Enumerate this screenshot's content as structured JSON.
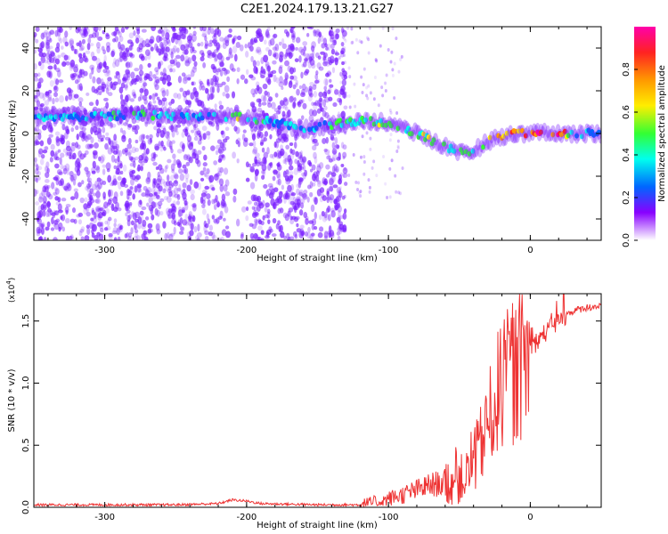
{
  "title": "C2E1.2024.179.13.21.G27",
  "colors": {
    "snr_line": "#ee3333",
    "spectrum_dots": "#7a1fff",
    "colorbar_stops": [
      "#ff00aa",
      "#ff2222",
      "#ff9900",
      "#ffee00",
      "#33ff33",
      "#00ffee",
      "#0066ff",
      "#8800ff",
      "#ffffff"
    ]
  },
  "chart_data": [
    {
      "type": "heatmap",
      "xlabel": "Height of straight line (km)",
      "ylabel": "Frequency (Hz)",
      "xlim": [
        -350,
        50
      ],
      "ylim": [
        -50,
        50
      ],
      "x_ticks": [
        -300,
        -200,
        -100,
        0
      ],
      "y_ticks": [
        -40,
        -20,
        0,
        20,
        40
      ],
      "x_tick_labels": [
        "-300",
        "-200",
        "-100",
        "0"
      ],
      "y_tick_labels": [
        "-40",
        "-20",
        "0",
        "20",
        "40"
      ],
      "colorbar": {
        "label": "Normalized spectral amplitude",
        "range": [
          0,
          1
        ],
        "ticks": [
          0.0,
          0.2,
          0.4,
          0.6,
          0.8
        ],
        "tick_labels": [
          "0.0",
          "0.2",
          "0.4",
          "0.6",
          "0.8"
        ]
      },
      "ridge": [
        {
          "x": -350,
          "y": 8,
          "amp": 0.3
        },
        {
          "x": -320,
          "y": 8,
          "amp": 0.3
        },
        {
          "x": -300,
          "y": 8,
          "amp": 0.35
        },
        {
          "x": -275,
          "y": 9,
          "amp": 0.4
        },
        {
          "x": -250,
          "y": 8,
          "amp": 0.35
        },
        {
          "x": -220,
          "y": 8,
          "amp": 0.35
        },
        {
          "x": -205,
          "y": 8,
          "amp": 0.55
        },
        {
          "x": -180,
          "y": 5,
          "amp": 0.3
        },
        {
          "x": -160,
          "y": 2,
          "amp": 0.3
        },
        {
          "x": -140,
          "y": 4,
          "amp": 0.35
        },
        {
          "x": -120,
          "y": 6,
          "amp": 0.4
        },
        {
          "x": -100,
          "y": 5,
          "amp": 0.5
        },
        {
          "x": -80,
          "y": 0,
          "amp": 0.5
        },
        {
          "x": -60,
          "y": -6,
          "amp": 0.45
        },
        {
          "x": -45,
          "y": -10,
          "amp": 0.45
        },
        {
          "x": -35,
          "y": -6,
          "amp": 0.45
        },
        {
          "x": -25,
          "y": -2,
          "amp": 0.6
        },
        {
          "x": -10,
          "y": 0,
          "amp": 0.75
        },
        {
          "x": 0,
          "y": 0,
          "amp": 0.85
        },
        {
          "x": 10,
          "y": 1,
          "amp": 0.85
        },
        {
          "x": 20,
          "y": 0,
          "amp": 0.9
        },
        {
          "x": 35,
          "y": 0,
          "amp": 0.3
        },
        {
          "x": 50,
          "y": 0,
          "amp": 0.3
        }
      ]
    },
    {
      "type": "line",
      "xlabel": "Height of straight line (km)",
      "ylabel": "SNR (10 * v/v)",
      "scale_label": "(x10",
      "scale_exponent": "4",
      "scale_suffix": ")",
      "xlim": [
        -350,
        50
      ],
      "ylim": [
        0,
        1.72
      ],
      "x_ticks": [
        -300,
        -200,
        -100,
        0
      ],
      "y_ticks": [
        0.0,
        0.5,
        1.0,
        1.5
      ],
      "x_tick_labels": [
        "-300",
        "-200",
        "-100",
        "0"
      ],
      "y_tick_labels": [
        "0.0",
        "0.5",
        "1.0",
        "1.5"
      ],
      "series": [
        {
          "x": [
            -350,
            -300,
            -250,
            -220,
            -210,
            -200,
            -190,
            -150,
            -120,
            -110,
            -100,
            -90,
            -80,
            -70,
            -60,
            -50,
            -45,
            -40,
            -35,
            -30,
            -25,
            -20,
            -15,
            -10,
            -5,
            0,
            5,
            10,
            15,
            20,
            25,
            30,
            40,
            50
          ],
          "y": [
            0.02,
            0.02,
            0.02,
            0.03,
            0.06,
            0.05,
            0.03,
            0.02,
            0.02,
            0.04,
            0.07,
            0.1,
            0.14,
            0.18,
            0.2,
            0.22,
            0.25,
            0.35,
            0.5,
            0.65,
            0.85,
            1.0,
            1.05,
            1.1,
            1.15,
            1.25,
            1.35,
            1.4,
            1.45,
            1.5,
            1.55,
            1.58,
            1.61,
            1.62
          ]
        }
      ]
    }
  ]
}
